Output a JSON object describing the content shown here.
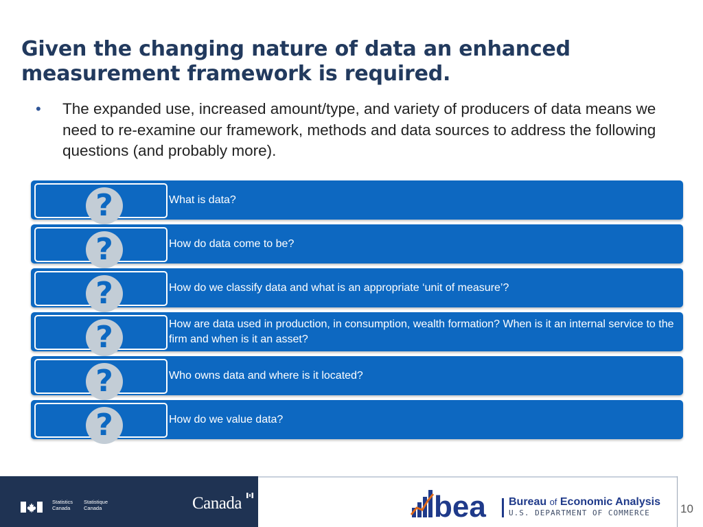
{
  "title": "Given the changing nature of data an enhanced measurement framework is required.",
  "bullet": {
    "marker": "•",
    "text": "The expanded use, increased amount/type, and variety of producers of data means we need to re-examine our framework, methods and data sources to address the following questions (and probably more)."
  },
  "question_mark": "?",
  "questions": [
    "What is data?",
    "How do data come to be?",
    "How do we classify data and what is an appropriate ‘unit of measure’?",
    "How are data used in production, in consumption, wealth formation?  When is it an internal service to the firm and when is it an asset?",
    "Who owns data and where is it located?",
    "How do we value data?"
  ],
  "colors": {
    "title": "#223a5e",
    "question_row": "#0d68c1",
    "question_circle": "#c3cdd6",
    "footer_left": "#1f3353",
    "bea_blue": "#1f3a8a",
    "canada_red": "#d52b1e"
  },
  "footer": {
    "statcan_en": [
      "Statistics",
      "Canada"
    ],
    "statcan_fr": [
      "Statistique",
      "Canada"
    ],
    "canada_wordmark": "Canada",
    "bea_logo_text": "bea",
    "bea_name_part1": "Bureau ",
    "bea_name_of": "of",
    "bea_name_part2": " Economic Analysis",
    "bea_dept": "U.S. DEPARTMENT OF COMMERCE",
    "page_number": "10"
  }
}
